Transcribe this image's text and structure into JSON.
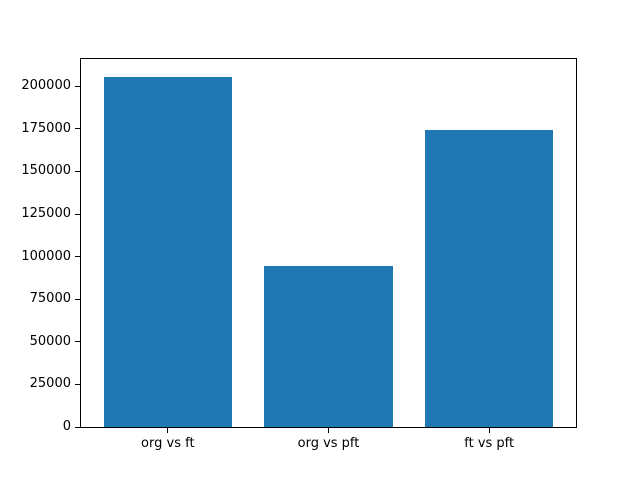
{
  "chart_data": {
    "type": "bar",
    "title": "",
    "xlabel": "",
    "ylabel": "",
    "categories": [
      "org vs ft",
      "org vs pft",
      "ft vs pft"
    ],
    "values": [
      205700,
      94700,
      174100
    ],
    "bar_color": "#1f77b4",
    "axis_color": "#000000",
    "background_color": "#ffffff",
    "bar_width": 0.8,
    "xlim": [
      -0.54,
      2.54
    ],
    "ylim": [
      0,
      216000
    ],
    "yticks": [
      0,
      25000,
      50000,
      75000,
      100000,
      125000,
      150000,
      175000,
      200000
    ],
    "ytick_labels": [
      "0",
      "25000",
      "50000",
      "75000",
      "100000",
      "125000",
      "150000",
      "175000",
      "200000"
    ],
    "grid": false,
    "legend": null
  }
}
